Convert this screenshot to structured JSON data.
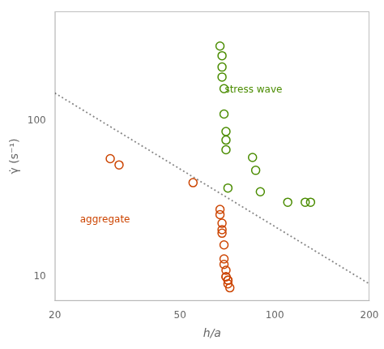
{
  "chart_data": {
    "type": "scatter",
    "x_label": "h/a",
    "y_label": "γ̇ (s⁻¹)",
    "series": [
      {
        "color": "#CC4400",
        "marker": "open_circle",
        "x": [
          30,
          32,
          55,
          67,
          67,
          68,
          68,
          68,
          69,
          69,
          69,
          70,
          70,
          70,
          71,
          71,
          71,
          72
        ],
        "values": [
          57,
          52,
          40,
          27,
          25,
          22,
          20,
          19,
          16,
          13,
          12,
          11,
          10,
          10,
          9.5,
          9.5,
          9,
          8.5
        ]
      },
      {
        "color": "#4A8C00",
        "marker": "open_circle",
        "x": [
          67,
          68,
          68,
          68,
          69,
          69,
          70,
          70,
          70,
          71,
          85,
          87,
          90,
          110,
          125,
          130
        ],
        "values": [
          300,
          260,
          220,
          190,
          160,
          110,
          85,
          75,
          65,
          37,
          58,
          48,
          35,
          30,
          30,
          30
        ]
      },
      {
        "type": "line",
        "line_style": "dotted",
        "color": "#888888",
        "x": [
          20,
          200
        ],
        "values": [
          150,
          9
        ]
      }
    ],
    "annotations": [
      {
        "text": "stress wave",
        "color": "#4A8C00"
      },
      {
        "text": "aggregate",
        "color": "#CC4400"
      }
    ],
    "log": true,
    "grid": false,
    "xlim": [
      20,
      200
    ],
    "ylim": [
      7,
      500
    ],
    "xticks": [
      20,
      50,
      100,
      200
    ],
    "yticks": [
      10,
      100
    ]
  }
}
